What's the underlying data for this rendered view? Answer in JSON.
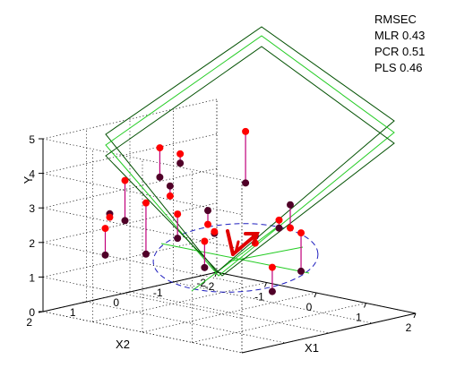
{
  "chart_data": {
    "type": "scatter",
    "title": "",
    "xlabel": "X1",
    "ylabel": "X2",
    "zlabel": "Y",
    "x_ticks": [
      "-2",
      "-1",
      "0",
      "1",
      "2"
    ],
    "y_ticks": [
      "-2",
      "-1",
      "0",
      "1",
      "2"
    ],
    "z_ticks": [
      "0",
      "1",
      "2",
      "3",
      "4",
      "5"
    ],
    "xlim": [
      -2,
      2
    ],
    "ylim": [
      -2,
      2
    ],
    "zlim": [
      0,
      5
    ],
    "grid": true,
    "legend_position": "top-right",
    "legend": {
      "heading": "RMSEC",
      "lines": [
        "MLR 0.43",
        "PCR 0.51",
        "PLS 0.46"
      ]
    },
    "colors": {
      "observed": "#ff0000",
      "fitted": "#500028",
      "stem": "#c0007a",
      "plane_dark": "#005000",
      "plane_light": "#22cc22",
      "ellipse": "#1e1ebe",
      "arrow": "#e00000"
    },
    "planes": [
      "MLR",
      "PCR",
      "PLS"
    ],
    "points": [
      {
        "x1": -0.36,
        "x2": -1.4,
        "obs": 0.8,
        "fit": 0.1
      },
      {
        "x1": -0.9,
        "x2": -0.46,
        "obs": 1.66,
        "fit": 0.9
      },
      {
        "x1": -1.1,
        "x2": 0.66,
        "obs": 3.03,
        "fit": 1.55
      },
      {
        "x1": -0.78,
        "x2": 0.3,
        "obs": 2.7,
        "fit": 2.0
      },
      {
        "x1": -0.72,
        "x2": 0.54,
        "obs": 3.31,
        "fit": 3.6
      },
      {
        "x1": -1.4,
        "x2": 0.8,
        "obs": 3.63,
        "fit": 2.47
      },
      {
        "x1": -1.41,
        "x2": 1.14,
        "obs": 2.66,
        "fit": 2.76
      },
      {
        "x1": -0.24,
        "x2": 0.22,
        "obs": 2.54,
        "fit": 2.94
      },
      {
        "x1": -0.3,
        "x2": 0.0,
        "obs": 2.25,
        "fit": 2.2
      },
      {
        "x1": -0.94,
        "x2": 1.78,
        "obs": 2.66,
        "fit": 1.89
      },
      {
        "x1": 0.0,
        "x2": 1.6,
        "obs": 5.22,
        "fit": 4.37
      },
      {
        "x1": 0.06,
        "x2": 1.2,
        "obs": 4.95,
        "fit": 4.68
      },
      {
        "x1": 1.2,
        "x2": 1.0,
        "obs": 5.88,
        "fit": 4.39
      },
      {
        "x1": 0.52,
        "x2": 0.0,
        "obs": 2.16,
        "fit": 2.36
      },
      {
        "x1": 1.18,
        "x2": -0.3,
        "obs": 2.57,
        "fit": 1.46
      },
      {
        "x1": 1.4,
        "x2": 0.2,
        "obs": 2.92,
        "fit": 3.59
      },
      {
        "x1": 1.0,
        "x2": 0.0,
        "obs": 2.97,
        "fit": 2.74
      }
    ]
  }
}
